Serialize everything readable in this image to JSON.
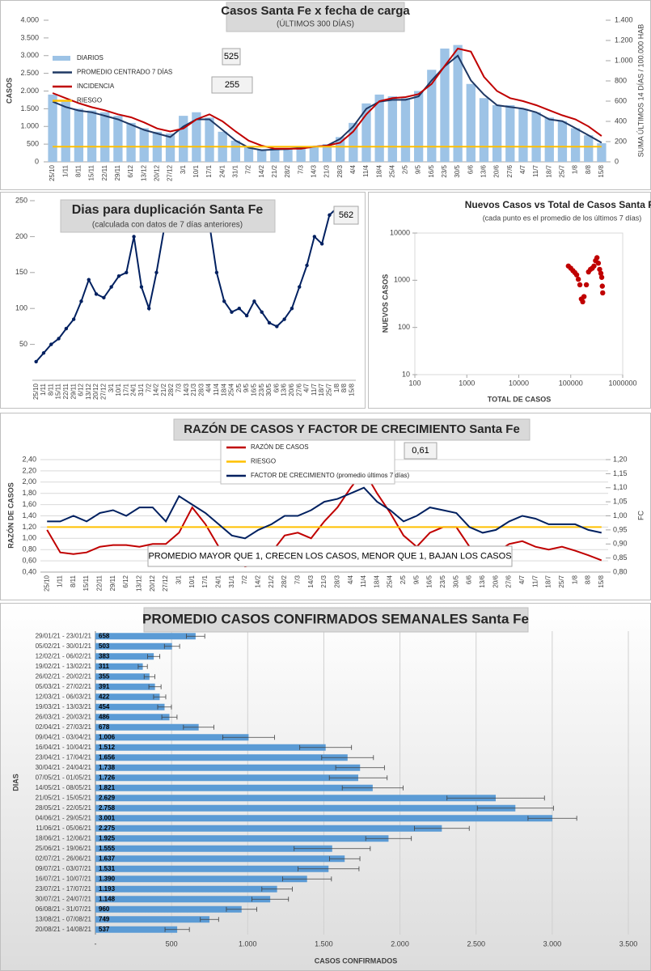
{
  "chart_data": [
    {
      "type": "combo",
      "title": "Casos Santa Fe x fecha de carga",
      "subtitle": "(ÚLTIMOS 300 DÍAS)",
      "y_label": "CASOS",
      "y2_label": "SUMA ÚLTIMOS 14 DÍAS / 100.000 HAB",
      "categories": [
        "25/10",
        "1/11",
        "8/11",
        "15/11",
        "22/11",
        "29/11",
        "6/12",
        "13/12",
        "20/12",
        "27/12",
        "3/1",
        "10/1",
        "17/1",
        "24/1",
        "31/1",
        "7/2",
        "14/2",
        "21/2",
        "28/2",
        "7/3",
        "14/3",
        "21/3",
        "28/3",
        "4/4",
        "11/4",
        "18/4",
        "25/4",
        "2/5",
        "9/5",
        "16/5",
        "23/5",
        "30/5",
        "6/6",
        "13/6",
        "20/6",
        "27/6",
        "4/7",
        "11/7",
        "18/7",
        "25/7",
        "1/8",
        "8/8",
        "15/8"
      ],
      "series": [
        {
          "name": "DIARIOS",
          "type": "bar",
          "color": "#9dc3e6",
          "values": [
            1900,
            1700,
            1500,
            1450,
            1400,
            1300,
            1100,
            950,
            850,
            800,
            1300,
            1400,
            1250,
            850,
            600,
            420,
            350,
            380,
            380,
            420,
            450,
            500,
            700,
            1100,
            1650,
            1900,
            1850,
            1800,
            2000,
            2600,
            3200,
            3300,
            2200,
            1800,
            1600,
            1600,
            1500,
            1400,
            1250,
            1150,
            950,
            750,
            525
          ]
        },
        {
          "name": "PROMEDIO CENTRADO 7 DÍAS",
          "type": "line",
          "color": "#1f3864",
          "values": [
            1700,
            1550,
            1450,
            1400,
            1300,
            1200,
            1050,
            900,
            800,
            700,
            1000,
            1200,
            1200,
            900,
            600,
            400,
            330,
            350,
            360,
            400,
            430,
            460,
            650,
            1000,
            1500,
            1700,
            1750,
            1750,
            1850,
            2300,
            2700,
            3000,
            2300,
            1900,
            1600,
            1550,
            1500,
            1400,
            1200,
            1150,
            950,
            750,
            540
          ]
        },
        {
          "name": "INCIDENCIA",
          "type": "line",
          "axis": "y2",
          "color": "#c00000",
          "values": [
            680,
            630,
            580,
            540,
            510,
            470,
            440,
            390,
            330,
            300,
            330,
            420,
            470,
            400,
            300,
            210,
            160,
            130,
            130,
            130,
            150,
            160,
            190,
            300,
            470,
            600,
            630,
            640,
            670,
            770,
            950,
            1120,
            1090,
            840,
            700,
            630,
            600,
            560,
            510,
            460,
            420,
            350,
            255
          ]
        },
        {
          "name": "RIESGO",
          "type": "line",
          "axis": "y2",
          "color": "#ffc000",
          "values": [
            150,
            150,
            150,
            150,
            150,
            150,
            150,
            150,
            150,
            150,
            150,
            150,
            150,
            150,
            150,
            150,
            150,
            150,
            150,
            150,
            150,
            150,
            150,
            150,
            150,
            150,
            150,
            150,
            150,
            150,
            150,
            150,
            150,
            150,
            150,
            150,
            150,
            150,
            150,
            150,
            150,
            150,
            150
          ]
        }
      ],
      "ylim": [
        0,
        4000
      ],
      "yticks": [
        0,
        500,
        {
          "value": 1000,
          "label": "1.000"
        },
        {
          "value": 1500,
          "label": "1.500"
        },
        {
          "value": 2000,
          "label": "2.000"
        },
        {
          "value": 2500,
          "label": "2.500"
        },
        {
          "value": 3000,
          "label": "3.000"
        },
        {
          "value": 3500,
          "label": "3.500"
        },
        {
          "value": 4000,
          "label": "4.000"
        }
      ],
      "y2lim": [
        0,
        1400
      ],
      "y2ticks": [
        0,
        200,
        400,
        600,
        800,
        {
          "value": 1000,
          "label": "1.000"
        },
        {
          "value": 1200,
          "label": "1.200"
        },
        {
          "value": 1400,
          "label": "1.400"
        }
      ],
      "grid": false,
      "legend": "upper left",
      "annotations": [
        "525",
        "255"
      ]
    },
    {
      "type": "line",
      "title": "Dias para duplicación Santa Fe",
      "subtitle": "(calculada con datos de 7 días anteriores)",
      "categories": [
        "25/10",
        "1/11",
        "8/11",
        "15/11",
        "22/11",
        "29/11",
        "6/12",
        "13/12",
        "20/12",
        "27/12",
        "3/1",
        "10/1",
        "17/1",
        "24/1",
        "31/1",
        "7/2",
        "14/2",
        "21/2",
        "28/2",
        "7/3",
        "14/3",
        "21/3",
        "28/3",
        "4/4",
        "11/4",
        "18/4",
        "25/4",
        "2/5",
        "9/5",
        "16/5",
        "23/5",
        "30/5",
        "6/6",
        "13/6",
        "20/6",
        "27/6",
        "4/7",
        "11/7",
        "18/7",
        "25/7",
        "1/8",
        "8/8",
        "15/8"
      ],
      "series": [
        {
          "color": "#002060",
          "values": [
            26,
            38,
            50,
            58,
            72,
            85,
            110,
            140,
            120,
            115,
            130,
            145,
            150,
            200,
            130,
            100,
            150,
            210,
            null,
            null,
            null,
            null,
            null,
            220,
            150,
            110,
            95,
            100,
            90,
            110,
            95,
            80,
            75,
            85,
            100,
            130,
            160,
            200,
            190,
            230,
            240,
            null,
            null
          ]
        }
      ],
      "ylim": [
        0,
        250
      ],
      "yticks": [
        50,
        100,
        150,
        200,
        250
      ],
      "grid": false,
      "markers": true,
      "annotations": [
        "562"
      ]
    },
    {
      "type": "scatter",
      "title": "Nuevos Casos vs Total de Casos Santa Fe",
      "subtitle": "(cada punto es el promedio de los últimos 7 días)",
      "x_label": "TOTAL DE CASOS",
      "y_label": "NUEVOS CASOS",
      "color": "#c00000",
      "x": [
        90000,
        100000,
        110000,
        120000,
        130000,
        140000,
        150000,
        160000,
        170000,
        180000,
        200000,
        220000,
        240000,
        260000,
        280000,
        300000,
        320000,
        340000,
        360000,
        380000,
        395000,
        405000,
        412000
      ],
      "y": [
        2000,
        1800,
        1600,
        1450,
        1300,
        1050,
        800,
        400,
        350,
        450,
        800,
        1500,
        1700,
        1800,
        2000,
        2600,
        3000,
        2300,
        1700,
        1400,
        1150,
        750,
        540
      ],
      "xlim": [
        100,
        1000000
      ],
      "xticks": [
        100,
        1000,
        10000,
        100000,
        1000000
      ],
      "ylim": [
        10,
        10000
      ],
      "yticks": [
        10,
        100,
        1000,
        10000
      ],
      "xlog": true,
      "ylog": true,
      "grid": false
    },
    {
      "type": "line",
      "title": "RAZÓN DE CASOS Y FACTOR DE CRECIMIENTO Santa Fe",
      "y_label": "RAZÓN DE CASOS",
      "y2_label": "FC",
      "categories": [
        "25/10",
        "1/11",
        "8/11",
        "15/11",
        "22/11",
        "29/11",
        "6/12",
        "13/12",
        "20/12",
        "27/12",
        "3/1",
        "10/1",
        "17/1",
        "24/1",
        "31/1",
        "7/2",
        "14/2",
        "21/2",
        "28/2",
        "7/3",
        "14/3",
        "21/3",
        "28/3",
        "4/4",
        "11/4",
        "18/4",
        "25/4",
        "2/5",
        "9/5",
        "16/5",
        "23/5",
        "30/5",
        "6/6",
        "13/6",
        "20/6",
        "27/6",
        "4/7",
        "11/7",
        "18/7",
        "25/7",
        "1/8",
        "8/8",
        "15/8"
      ],
      "series": [
        {
          "name": "RAZÓN DE CASOS",
          "color": "#c00000",
          "values": [
            1.15,
            0.75,
            0.72,
            0.75,
            0.85,
            0.88,
            0.88,
            0.85,
            0.9,
            0.9,
            1.1,
            1.55,
            1.25,
            0.85,
            0.65,
            0.5,
            0.55,
            0.75,
            1.05,
            1.1,
            1.0,
            1.3,
            1.55,
            1.9,
            2.2,
            1.8,
            1.45,
            1.05,
            0.85,
            1.1,
            1.2,
            1.2,
            0.85,
            0.75,
            0.75,
            0.9,
            0.95,
            0.85,
            0.8,
            0.85,
            0.78,
            0.7,
            0.61
          ]
        },
        {
          "name": "RIESGO",
          "color": "#ffc000",
          "values": [
            1.2,
            1.2,
            1.2,
            1.2,
            1.2,
            1.2,
            1.2,
            1.2,
            1.2,
            1.2,
            1.2,
            1.2,
            1.2,
            1.2,
            1.2,
            1.2,
            1.2,
            1.2,
            1.2,
            1.2,
            1.2,
            1.2,
            1.2,
            1.2,
            1.2,
            1.2,
            1.2,
            1.2,
            1.2,
            1.2,
            1.2,
            1.2,
            1.2,
            1.2,
            1.2,
            1.2,
            1.2,
            1.2,
            1.2,
            1.2,
            1.2,
            1.2,
            1.2
          ]
        },
        {
          "name": "FACTOR DE CRECIMIENTO (promedio últimos 7 días)",
          "axis": "y2",
          "color": "#002060",
          "values": [
            0.98,
            0.98,
            1.0,
            0.98,
            1.01,
            1.02,
            1.0,
            1.03,
            1.03,
            0.98,
            1.07,
            1.04,
            1.01,
            0.97,
            0.93,
            0.92,
            0.95,
            0.97,
            1.0,
            1.0,
            1.02,
            1.05,
            1.06,
            1.08,
            1.1,
            1.05,
            1.02,
            0.98,
            1.0,
            1.03,
            1.02,
            1.01,
            0.96,
            0.94,
            0.95,
            0.98,
            1.0,
            0.99,
            0.97,
            0.97,
            0.97,
            0.95,
            0.94
          ]
        }
      ],
      "ylim": [
        0.4,
        2.4
      ],
      "yticks": [
        {
          "value": 0.4,
          "label": "0,40"
        },
        {
          "value": 0.6,
          "label": "0,60"
        },
        {
          "value": 0.8,
          "label": "0,80"
        },
        {
          "value": 1.0,
          "label": "1,00"
        },
        {
          "value": 1.2,
          "label": "1,20"
        },
        {
          "value": 1.4,
          "label": "1,40"
        },
        {
          "value": 1.6,
          "label": "1,60"
        },
        {
          "value": 1.8,
          "label": "1,80"
        },
        {
          "value": 2.0,
          "label": "2,00"
        },
        {
          "value": 2.2,
          "label": "2,20"
        },
        {
          "value": 2.4,
          "label": "2,40"
        }
      ],
      "y2lim": [
        0.8,
        1.2
      ],
      "y2ticks": [
        {
          "value": 0.8,
          "label": "0,80"
        },
        {
          "value": 0.85,
          "label": "0,85"
        },
        {
          "value": 0.9,
          "label": "0,90"
        },
        {
          "value": 0.95,
          "label": "0,95"
        },
        {
          "value": 1.0,
          "label": "1,00"
        },
        {
          "value": 1.05,
          "label": "1,05"
        },
        {
          "value": 1.1,
          "label": "1,10"
        },
        {
          "value": 1.15,
          "label": "1,15"
        },
        {
          "value": 1.2,
          "label": "1,20"
        }
      ],
      "grid": true,
      "legend": "upper center",
      "annotations": [
        "0,61",
        "PROMEDIO MAYOR QUE 1, CRECEN LOS CASOS, MENOR QUE 1, BAJAN LOS CASOS"
      ]
    },
    {
      "type": "bar",
      "orientation": "horizontal",
      "title": "PROMEDIO CASOS CONFIRMADOS SEMANALES Santa Fe",
      "x_label": "CASOS CONFIRMADOS",
      "y_label": "DIAS",
      "color": "#5b9bd5",
      "categories": [
        "29/01/21 - 23/01/21",
        "05/02/21 - 30/01/21",
        "12/02/21 - 06/02/21",
        "19/02/21 - 13/02/21",
        "26/02/21 - 20/02/21",
        "05/03/21 - 27/02/21",
        "12/03/21 - 06/03/21",
        "19/03/21 - 13/03/21",
        "26/03/21 - 20/03/21",
        "02/04/21 - 27/03/21",
        "09/04/21 - 03/04/21",
        "16/04/21 - 10/04/21",
        "23/04/21 - 17/04/21",
        "30/04/21 - 24/04/21",
        "07/05/21 - 01/05/21",
        "14/05/21 - 08/05/21",
        "21/05/21 - 15/05/21",
        "28/05/21 - 22/05/21",
        "04/06/21 - 29/05/21",
        "11/06/21 - 05/06/21",
        "18/06/21 - 12/06/21",
        "25/06/21 - 19/06/21",
        "02/07/21 - 26/06/21",
        "09/07/21 - 03/07/21",
        "16/07/21 - 10/07/21",
        "23/07/21 - 17/07/21",
        "30/07/21 - 24/07/21",
        "06/08/21 - 31/07/21",
        "13/08/21 - 07/08/21",
        "20/08/21 - 14/08/21"
      ],
      "values": [
        658,
        503,
        383,
        311,
        355,
        391,
        422,
        454,
        486,
        678,
        1006,
        1512,
        1656,
        1738,
        1726,
        1821,
        2629,
        2758,
        3001,
        2275,
        1925,
        1555,
        1637,
        1531,
        1390,
        1193,
        1148,
        960,
        749,
        537
      ],
      "value_labels": [
        "658",
        "503",
        "383",
        "311",
        "355",
        "391",
        "422",
        "454",
        "486",
        "678",
        "1.006",
        "1.512",
        "1.656",
        "1.738",
        "1.726",
        "1.821",
        "2.629",
        "2.758",
        "3.001",
        "2.275",
        "1.925",
        "1.555",
        "1.637",
        "1.531",
        "1.390",
        "1.193",
        "1.148",
        "960",
        "749",
        "537"
      ],
      "errors": [
        60,
        50,
        40,
        30,
        35,
        40,
        40,
        45,
        50,
        100,
        170,
        170,
        170,
        160,
        190,
        200,
        320,
        250,
        160,
        180,
        150,
        250,
        100,
        200,
        160,
        100,
        120,
        100,
        60,
        80
      ],
      "xlim": [
        0,
        3500
      ],
      "xticks": [
        {
          "value": 0,
          "label": "-"
        },
        500,
        {
          "value": 1000,
          "label": "1.000"
        },
        {
          "value": 1500,
          "label": "1.500"
        },
        {
          "value": 2000,
          "label": "2.000"
        },
        {
          "value": 2500,
          "label": "2.500"
        },
        {
          "value": 3000,
          "label": "3.000"
        },
        {
          "value": 3500,
          "label": "3.500"
        }
      ],
      "grid": true
    }
  ]
}
